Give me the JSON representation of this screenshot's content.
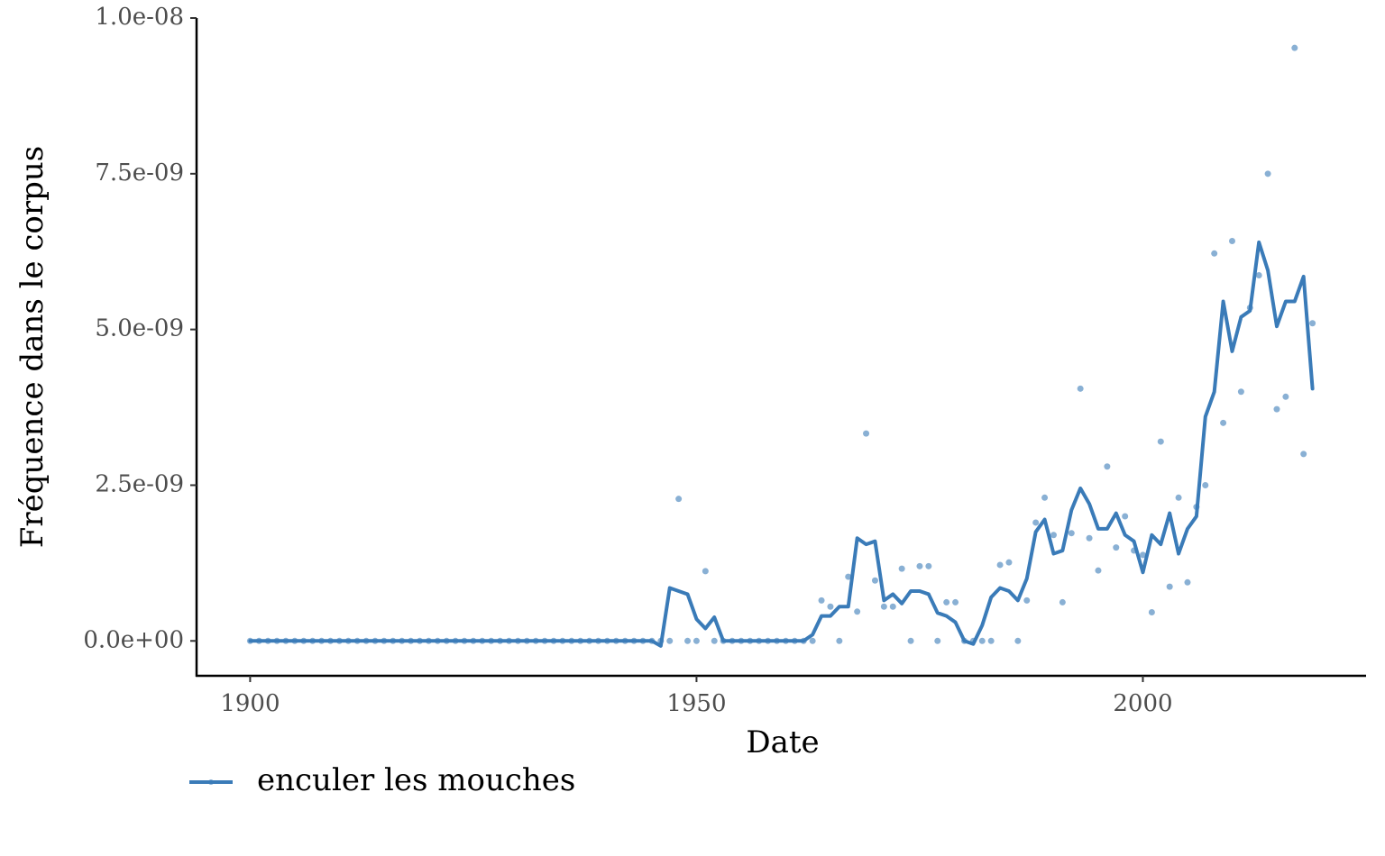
{
  "chart_data": {
    "type": "line",
    "xlabel": "Date",
    "ylabel": "Fréquence dans le corpus",
    "xlim": [
      1894,
      2025
    ],
    "xticks": [
      1900,
      1950,
      2000
    ],
    "ylim": [
      -5.6e-10,
      1e-08
    ],
    "yticks": [
      {
        "value": 0,
        "label": "0.0e+00"
      },
      {
        "value": 2.5e-09,
        "label": "2.5e-09"
      },
      {
        "value": 5e-09,
        "label": "5.0e-09"
      },
      {
        "value": 7.5e-09,
        "label": "7.5e-09"
      },
      {
        "value": 1e-08,
        "label": "1.0e-08"
      }
    ],
    "legend": "bottom",
    "x": [
      1900,
      1901,
      1902,
      1903,
      1904,
      1905,
      1906,
      1907,
      1908,
      1909,
      1910,
      1911,
      1912,
      1913,
      1914,
      1915,
      1916,
      1917,
      1918,
      1919,
      1920,
      1921,
      1922,
      1923,
      1924,
      1925,
      1926,
      1927,
      1928,
      1929,
      1930,
      1931,
      1932,
      1933,
      1934,
      1935,
      1936,
      1937,
      1938,
      1939,
      1940,
      1941,
      1942,
      1943,
      1944,
      1945,
      1946,
      1947,
      1948,
      1949,
      1950,
      1951,
      1952,
      1953,
      1954,
      1955,
      1956,
      1957,
      1958,
      1959,
      1960,
      1961,
      1962,
      1963,
      1964,
      1965,
      1966,
      1967,
      1968,
      1969,
      1970,
      1971,
      1972,
      1973,
      1974,
      1975,
      1976,
      1977,
      1978,
      1979,
      1980,
      1981,
      1982,
      1983,
      1984,
      1985,
      1986,
      1987,
      1988,
      1989,
      1990,
      1991,
      1992,
      1993,
      1994,
      1995,
      1996,
      1997,
      1998,
      1999,
      2000,
      2001,
      2002,
      2003,
      2004,
      2005,
      2006,
      2007,
      2008,
      2009,
      2010,
      2011,
      2012,
      2013,
      2014,
      2015,
      2016,
      2017,
      2018,
      2019
    ],
    "series": [
      {
        "name": "enculer les mouches",
        "color": "#3a7bb8",
        "values": [
          0,
          0,
          0,
          0,
          0,
          0,
          0,
          0,
          0,
          0,
          0,
          0,
          0,
          0,
          0,
          0,
          0,
          0,
          0,
          0,
          0,
          0,
          0,
          0,
          0,
          0,
          0,
          0,
          0,
          0,
          0,
          0,
          0,
          0,
          0,
          0,
          0,
          0,
          0,
          0,
          0,
          0,
          0,
          0,
          0,
          0,
          0,
          0,
          2.28e-09,
          0,
          0,
          1.12e-09,
          0,
          0,
          0,
          0,
          0,
          0,
          0,
          0,
          0,
          0,
          0,
          0,
          6.5e-10,
          5.5e-10,
          0,
          1.03e-09,
          4.7e-10,
          3.33e-09,
          9.7e-10,
          5.5e-10,
          5.5e-10,
          1.16e-09,
          0,
          1.2e-09,
          1.2e-09,
          0,
          6.2e-10,
          6.2e-10,
          0,
          0,
          0,
          0,
          1.22e-09,
          1.26e-09,
          0,
          6.5e-10,
          1.9e-09,
          2.3e-09,
          1.7e-09,
          6.2e-10,
          1.73e-09,
          4.05e-09,
          1.65e-09,
          1.13e-09,
          2.8e-09,
          1.5e-09,
          2e-09,
          1.45e-09,
          1.38e-09,
          4.6e-10,
          3.2e-09,
          8.7e-10,
          2.3e-09,
          9.4e-10,
          2.15e-09,
          2.5e-09,
          6.22e-09,
          3.5e-09,
          6.42e-09,
          4e-09,
          5.35e-09,
          5.87e-09,
          7.5e-09,
          3.72e-09,
          3.92e-09,
          9.52e-09,
          3e-09,
          5.1e-09
        ],
        "smooth": [
          0,
          0,
          0,
          0,
          0,
          0,
          0,
          0,
          0,
          0,
          0,
          0,
          0,
          0,
          0,
          0,
          0,
          0,
          0,
          0,
          0,
          0,
          0,
          0,
          0,
          0,
          0,
          0,
          0,
          0,
          0,
          0,
          0,
          0,
          0,
          0,
          0,
          0,
          0,
          0,
          0,
          0,
          0,
          0,
          0,
          0,
          -8e-11,
          8.5e-10,
          8e-10,
          7.5e-10,
          3.5e-10,
          2e-10,
          3.8e-10,
          0,
          0,
          0,
          0,
          0,
          0,
          0,
          0,
          0,
          0,
          1e-10,
          4e-10,
          4e-10,
          5.5e-10,
          5.5e-10,
          1.65e-09,
          1.55e-09,
          1.6e-09,
          6.5e-10,
          7.5e-10,
          6e-10,
          8e-10,
          8e-10,
          7.5e-10,
          4.5e-10,
          4e-10,
          3e-10,
          0,
          -5e-11,
          2.5e-10,
          7e-10,
          8.5e-10,
          8e-10,
          6.5e-10,
          1e-09,
          1.75e-09,
          1.95e-09,
          1.4e-09,
          1.45e-09,
          2.1e-09,
          2.45e-09,
          2.2e-09,
          1.8e-09,
          1.8e-09,
          2.05e-09,
          1.7e-09,
          1.6e-09,
          1.1e-09,
          1.7e-09,
          1.55e-09,
          2.05e-09,
          1.4e-09,
          1.8e-09,
          2e-09,
          3.6e-09,
          4e-09,
          5.45e-09,
          4.65e-09,
          5.2e-09,
          5.3e-09,
          6.4e-09,
          5.95e-09,
          5.05e-09,
          5.45e-09,
          5.45e-09,
          5.85e-09,
          4.05e-09
        ]
      }
    ]
  }
}
